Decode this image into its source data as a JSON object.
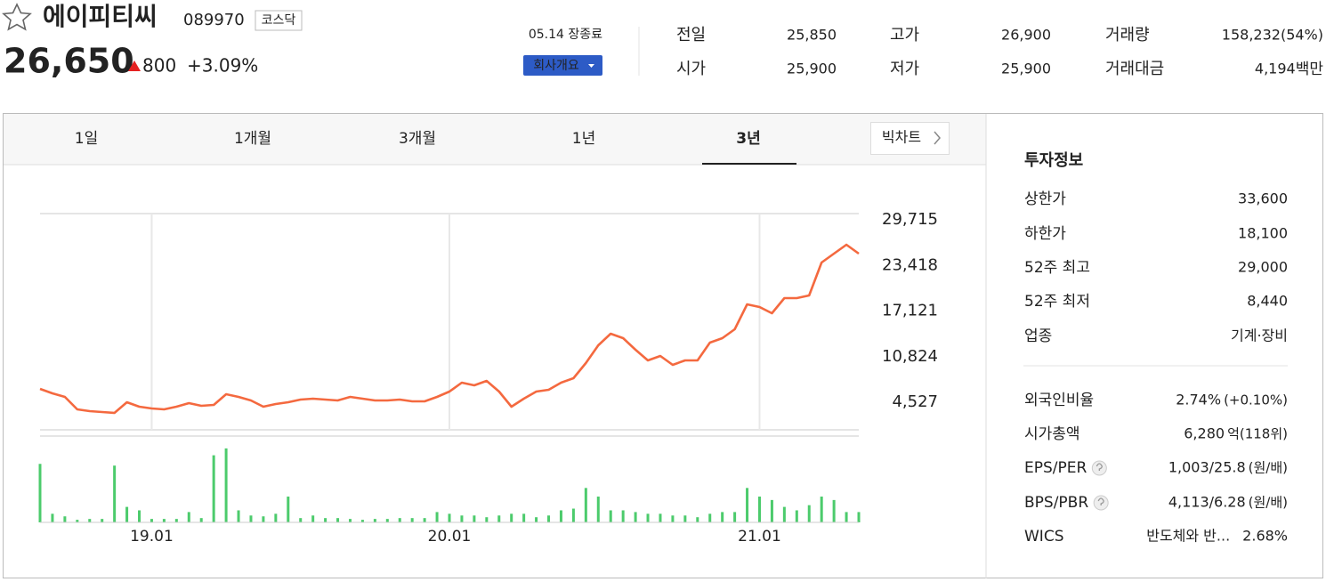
{
  "header": {
    "name": "에이피티씨",
    "code": "089970",
    "market": "코스닥",
    "price": "26,650",
    "change": "800",
    "rate": "+3.09%",
    "status": "05.14 장종료",
    "company_button": "회사개요",
    "color": "#e52222"
  },
  "summary": [
    {
      "label": "전일",
      "value": "25,850",
      "color": "#222"
    },
    {
      "label": "시가",
      "value": "25,900",
      "color": "#e52222"
    },
    {
      "label": "고가",
      "value": "26,900",
      "color": "#e52222"
    },
    {
      "label": "저가",
      "value": "25,900",
      "color": "#e52222"
    },
    {
      "label": "거래량",
      "value": "158,232(54%)",
      "color": "#222"
    },
    {
      "label": "거래대금",
      "value": "4,194",
      "unit": "백만",
      "color": "#222"
    }
  ],
  "tabs": [
    "1일",
    "1개월",
    "3개월",
    "1년",
    "3년"
  ],
  "active_tab": 4,
  "big_chart": "빅차트",
  "chart_data": {
    "type": "line",
    "color": "#f4693f",
    "categories": [
      null,
      null,
      null,
      null,
      null,
      null,
      null,
      null,
      null,
      "19.01",
      null,
      null,
      null,
      null,
      null,
      null,
      null,
      null,
      null,
      null,
      null,
      null,
      null,
      null,
      null,
      null,
      null,
      null,
      null,
      null,
      null,
      null,
      null,
      "20.01",
      null,
      null,
      null,
      null,
      null,
      null,
      null,
      null,
      null,
      null,
      null,
      null,
      null,
      null,
      null,
      null,
      null,
      null,
      null,
      null,
      null,
      null,
      null,
      null,
      "21.01",
      null,
      null,
      null,
      null,
      null,
      null,
      null,
      null
    ],
    "values": [
      6393,
      5779,
      5288,
      3569,
      3324,
      3201,
      3078,
      4551,
      3937,
      3692,
      3569,
      3937,
      4428,
      4060,
      4183,
      5656,
      5288,
      4797,
      3937,
      4306,
      4551,
      4919,
      5042,
      4919,
      4797,
      5288,
      5042,
      4797,
      4797,
      4919,
      4674,
      4674,
      5288,
      6024,
      7252,
      6883,
      7497,
      6024,
      3937,
      5042,
      6024,
      6270,
      7252,
      7865,
      9952,
      12407,
      14003,
      13389,
      11793,
      10320,
      10934,
      9707,
      10320,
      10320,
      12775,
      13389,
      14617,
      18054,
      17685,
      16826,
      18913,
      18913,
      19281,
      23823,
      25050,
      26278,
      25050
    ],
    "ylim": [
      747,
      30574
    ],
    "yticks": [
      {
        "value": 29715,
        "label": "29,715"
      },
      {
        "value": 23418,
        "label": "23,418"
      },
      {
        "value": 17121,
        "label": "17,121"
      },
      {
        "value": 10824,
        "label": "10,824"
      },
      {
        "value": 4527,
        "label": "4,527"
      }
    ],
    "volume": {
      "color": "#4ccb6c",
      "ylim": [
        0,
        90
      ],
      "values": [
        68,
        10,
        7,
        3,
        4,
        4,
        66,
        18,
        14,
        4,
        4,
        4,
        12,
        5,
        78,
        86,
        14,
        8,
        7,
        10,
        30,
        5,
        8,
        5,
        5,
        4,
        3,
        4,
        4,
        5,
        5,
        5,
        12,
        10,
        8,
        8,
        6,
        8,
        10,
        10,
        6,
        8,
        14,
        16,
        40,
        30,
        14,
        14,
        12,
        10,
        10,
        8,
        8,
        6,
        10,
        12,
        12,
        40,
        30,
        26,
        18,
        14,
        20,
        30,
        26,
        12,
        12
      ]
    }
  },
  "info": {
    "title": "투자정보",
    "rows": [
      {
        "label": "상한가",
        "value": "33,600",
        "color": "#e52222"
      },
      {
        "label": "하한가",
        "value": "18,100",
        "color": "#2a5bc9"
      },
      {
        "label": "52주 최고",
        "value": "29,000",
        "color": "#222"
      },
      {
        "label": "52주 최저",
        "value": "8,440",
        "color": "#222"
      },
      {
        "label": "업종",
        "value": "기계·장비",
        "color": "#222"
      }
    ],
    "rows2": [
      {
        "label": "외국인비율",
        "value": "2.74%",
        "note": "(+0.10%)",
        "color": "#222"
      },
      {
        "label": "시가총액",
        "value": "6,280",
        "note": "억(118위)",
        "color": "#222"
      },
      {
        "label": "EPS/PER",
        "value": "1,003/25.8",
        "note": "(원/배)",
        "help": true,
        "color": "#222"
      },
      {
        "label": "BPS/PBR",
        "value": "4,113/6.28",
        "note": "(원/배)",
        "help": true,
        "color": "#222"
      },
      {
        "label": "WICS",
        "value": "반도체와 반...",
        "note": "2.68%",
        "note_color": "#e52222",
        "color": "#222"
      }
    ]
  }
}
